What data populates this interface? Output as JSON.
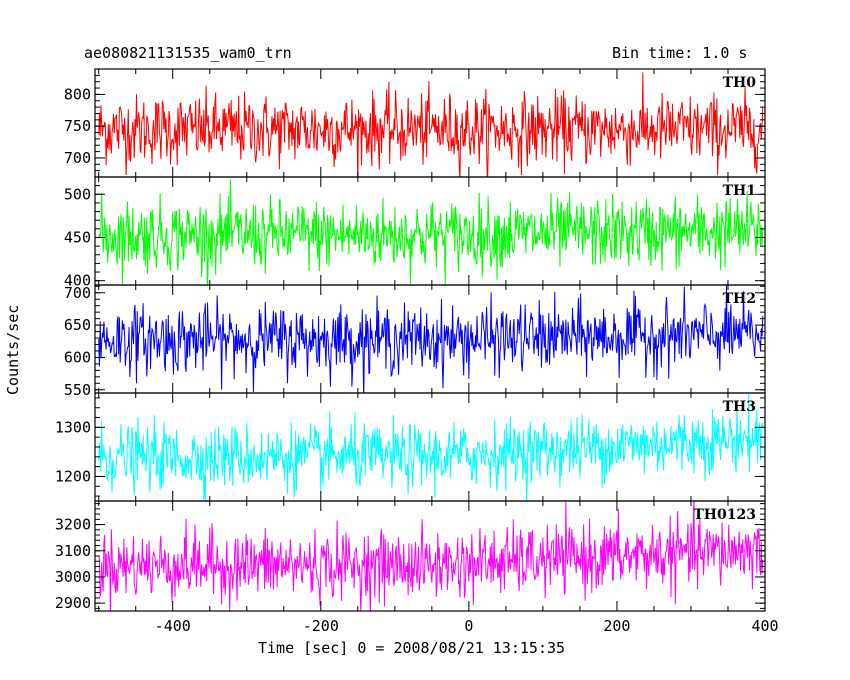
{
  "chart_data": {
    "type": "line",
    "title": "ae080821131535_wam0_trn",
    "bin_time": "Bin time: 1.0 s",
    "xlabel": "Time [sec] 0 = 2008/08/21 13:15:35",
    "ylabel": "Counts/sec",
    "xlim": [
      -505,
      400
    ],
    "xticks": [
      -400,
      -200,
      0,
      200,
      400
    ],
    "shared_x": true,
    "panels": [
      {
        "name": "TH0",
        "color": "#ff0000",
        "ylim": [
          670,
          840
        ],
        "yticks": [
          700,
          750,
          800
        ],
        "mean": 745,
        "spread": 38,
        "trend": 0
      },
      {
        "name": "TH1",
        "color": "#00ff00",
        "ylim": [
          395,
          520
        ],
        "yticks": [
          400,
          450,
          500
        ],
        "mean": 453,
        "spread": 28,
        "trend": 5
      },
      {
        "name": "TH2",
        "color": "#0000ff",
        "ylim": [
          545,
          712
        ],
        "yticks": [
          550,
          600,
          650,
          700
        ],
        "mean": 628,
        "spread": 36,
        "trend": 8
      },
      {
        "name": "TH3",
        "color": "#00ffff",
        "ylim": [
          1150,
          1370
        ],
        "yticks": [
          1200,
          1300
        ],
        "mean": 1240,
        "spread": 45,
        "trend": 40
      },
      {
        "name": "TH0123",
        "color": "#ff00ff",
        "ylim": [
          2870,
          3290
        ],
        "yticks": [
          2900,
          3000,
          3100,
          3200
        ],
        "mean": 3045,
        "spread": 90,
        "trend": 60
      }
    ]
  }
}
